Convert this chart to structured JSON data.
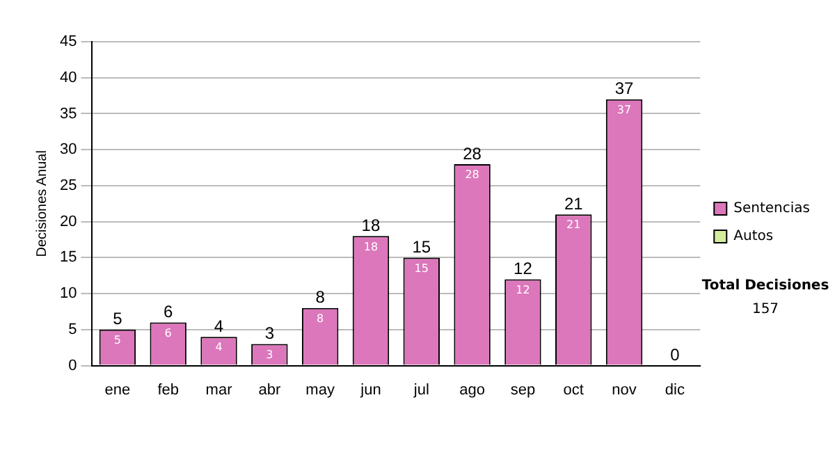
{
  "chart_data": {
    "type": "bar",
    "stacked": true,
    "ylabel": "Decisiones Anual",
    "categories": [
      "ene",
      "feb",
      "mar",
      "abr",
      "may",
      "jun",
      "jul",
      "ago",
      "sep",
      "oct",
      "nov",
      "dic"
    ],
    "series": [
      {
        "name": "Sentencias",
        "color": "#dc77bb",
        "values": [
          5,
          6,
          4,
          3,
          8,
          18,
          15,
          28,
          12,
          21,
          37,
          0
        ],
        "value_labels": [
          "5",
          "6",
          "4",
          "3",
          "8",
          "18",
          "15",
          "28",
          "12",
          "21",
          "37",
          null
        ]
      },
      {
        "name": "Autos",
        "color": "#d4ec9c",
        "values": [
          null,
          null,
          null,
          null,
          null,
          null,
          null,
          null,
          null,
          null,
          null,
          null
        ]
      }
    ],
    "totals": [
      "5",
      "6",
      "4",
      "3",
      "8",
      "18",
      "15",
      "28",
      "12",
      "21",
      "37",
      "0"
    ],
    "ylim": [
      0,
      45
    ],
    "yticks": [
      0,
      5,
      10,
      15,
      20,
      25,
      30,
      35,
      40,
      45
    ],
    "grid": "y",
    "legend": "right",
    "annotations": [
      "Total Decisiones",
      "157"
    ]
  }
}
